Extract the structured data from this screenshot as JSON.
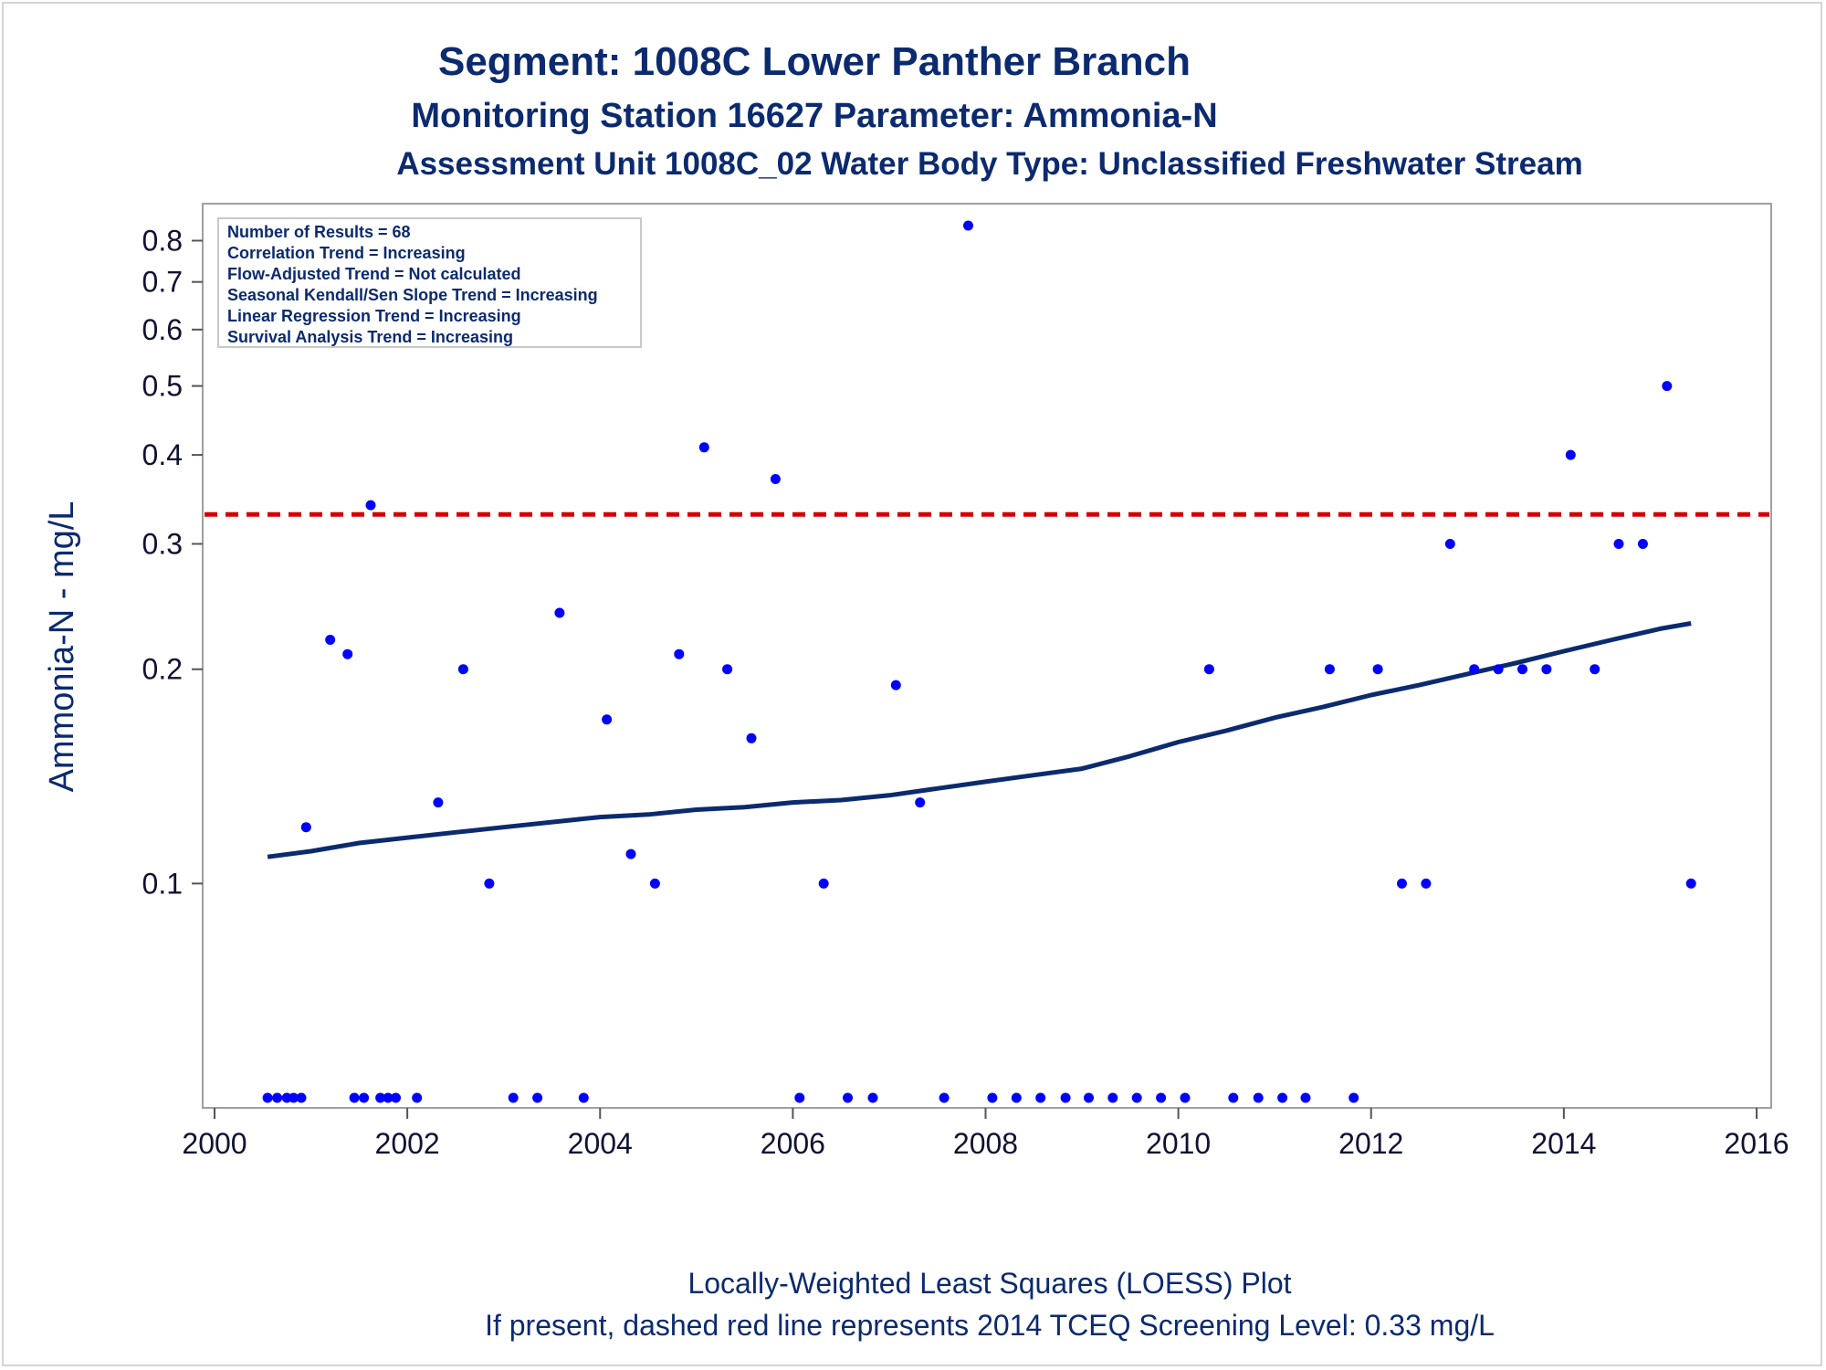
{
  "colors": {
    "title": "#0b2a6f",
    "points": "#0000ff",
    "loess": "#0b2a6f",
    "screening": "#d40000",
    "frame": "#a0a0a0"
  },
  "footer": {
    "line1": "Locally-Weighted Least Squares (LOESS) Plot",
    "line2": "If present, dashed red line represents 2014 TCEQ Screening Level: 0.33 mg/L"
  },
  "legend": {
    "lines": [
      "Number of Results = 68",
      "Correlation Trend = Increasing",
      "Flow-Adjusted Trend = Not calculated",
      "Seasonal Kendall/Sen Slope Trend = Increasing",
      "Linear Regression Trend = Increasing",
      "Survival Analysis Trend = Increasing"
    ]
  },
  "chart_data": {
    "type": "scatter",
    "title": "Segment: 1008C  Lower Panther Branch",
    "subtitle": "Monitoring Station 16627 Parameter: Ammonia-N",
    "subtitle2": "Assessment Unit 1008C_02   Water Body Type: Unclassified Freshwater Stream",
    "xlabel": "",
    "ylabel": "Ammonia-N - mg/L",
    "yscale": "log",
    "xlim": [
      2000,
      2016
    ],
    "ylim": [
      0.05,
      0.86
    ],
    "x_ticks": [
      2000,
      2002,
      2004,
      2006,
      2008,
      2010,
      2012,
      2014,
      2016
    ],
    "y_ticks": [
      0.1,
      0.2,
      0.3,
      0.4,
      0.5,
      0.6,
      0.7,
      0.8
    ],
    "grid": false,
    "legend_position": "top-left",
    "screening_level": 0.33,
    "points": [
      [
        2000.55,
        0.05
      ],
      [
        2000.65,
        0.05
      ],
      [
        2000.75,
        0.05
      ],
      [
        2000.82,
        0.05
      ],
      [
        2000.9,
        0.05
      ],
      [
        2000.95,
        0.12
      ],
      [
        2001.2,
        0.22
      ],
      [
        2001.38,
        0.21
      ],
      [
        2001.45,
        0.05
      ],
      [
        2001.55,
        0.05
      ],
      [
        2001.62,
        0.34
      ],
      [
        2001.72,
        0.05
      ],
      [
        2001.8,
        0.05
      ],
      [
        2001.88,
        0.05
      ],
      [
        2002.1,
        0.05
      ],
      [
        2002.32,
        0.13
      ],
      [
        2002.58,
        0.2
      ],
      [
        2002.85,
        0.1
      ],
      [
        2003.1,
        0.05
      ],
      [
        2003.35,
        0.05
      ],
      [
        2003.58,
        0.24
      ],
      [
        2003.83,
        0.05
      ],
      [
        2004.07,
        0.17
      ],
      [
        2004.32,
        0.11
      ],
      [
        2004.57,
        0.1
      ],
      [
        2004.82,
        0.21
      ],
      [
        2005.08,
        0.41
      ],
      [
        2005.32,
        0.2
      ],
      [
        2005.57,
        0.16
      ],
      [
        2005.82,
        0.37
      ],
      [
        2006.07,
        0.05
      ],
      [
        2006.32,
        0.1
      ],
      [
        2006.57,
        0.05
      ],
      [
        2006.83,
        0.05
      ],
      [
        2007.07,
        0.19
      ],
      [
        2007.32,
        0.13
      ],
      [
        2007.57,
        0.05
      ],
      [
        2007.82,
        0.84
      ],
      [
        2008.07,
        0.05
      ],
      [
        2008.32,
        0.05
      ],
      [
        2008.57,
        0.05
      ],
      [
        2008.83,
        0.05
      ],
      [
        2009.07,
        0.05
      ],
      [
        2009.32,
        0.05
      ],
      [
        2009.57,
        0.05
      ],
      [
        2009.82,
        0.05
      ],
      [
        2010.07,
        0.05
      ],
      [
        2010.32,
        0.2
      ],
      [
        2010.57,
        0.05
      ],
      [
        2010.83,
        0.05
      ],
      [
        2011.08,
        0.05
      ],
      [
        2011.32,
        0.05
      ],
      [
        2011.57,
        0.2
      ],
      [
        2011.82,
        0.05
      ],
      [
        2012.07,
        0.2
      ],
      [
        2012.32,
        0.1
      ],
      [
        2012.57,
        0.1
      ],
      [
        2012.82,
        0.3
      ],
      [
        2013.07,
        0.2
      ],
      [
        2013.32,
        0.2
      ],
      [
        2013.57,
        0.2
      ],
      [
        2013.82,
        0.2
      ],
      [
        2014.07,
        0.4
      ],
      [
        2014.32,
        0.2
      ],
      [
        2014.57,
        0.3
      ],
      [
        2014.82,
        0.3
      ],
      [
        2015.07,
        0.5
      ],
      [
        2015.32,
        0.1
      ]
    ],
    "loess": [
      [
        2000.55,
        0.109
      ],
      [
        2001.0,
        0.111
      ],
      [
        2001.5,
        0.114
      ],
      [
        2002.0,
        0.116
      ],
      [
        2002.5,
        0.118
      ],
      [
        2003.0,
        0.12
      ],
      [
        2003.5,
        0.122
      ],
      [
        2004.0,
        0.124
      ],
      [
        2004.5,
        0.125
      ],
      [
        2005.0,
        0.127
      ],
      [
        2005.5,
        0.128
      ],
      [
        2006.0,
        0.13
      ],
      [
        2006.5,
        0.131
      ],
      [
        2007.0,
        0.133
      ],
      [
        2007.5,
        0.136
      ],
      [
        2008.0,
        0.139
      ],
      [
        2008.5,
        0.142
      ],
      [
        2009.0,
        0.145
      ],
      [
        2009.5,
        0.151
      ],
      [
        2010.0,
        0.158
      ],
      [
        2010.5,
        0.164
      ],
      [
        2011.0,
        0.171
      ],
      [
        2011.5,
        0.177
      ],
      [
        2012.0,
        0.184
      ],
      [
        2012.5,
        0.19
      ],
      [
        2013.0,
        0.197
      ],
      [
        2013.5,
        0.204
      ],
      [
        2014.0,
        0.212
      ],
      [
        2014.5,
        0.22
      ],
      [
        2015.0,
        0.228
      ],
      [
        2015.32,
        0.232
      ]
    ]
  }
}
